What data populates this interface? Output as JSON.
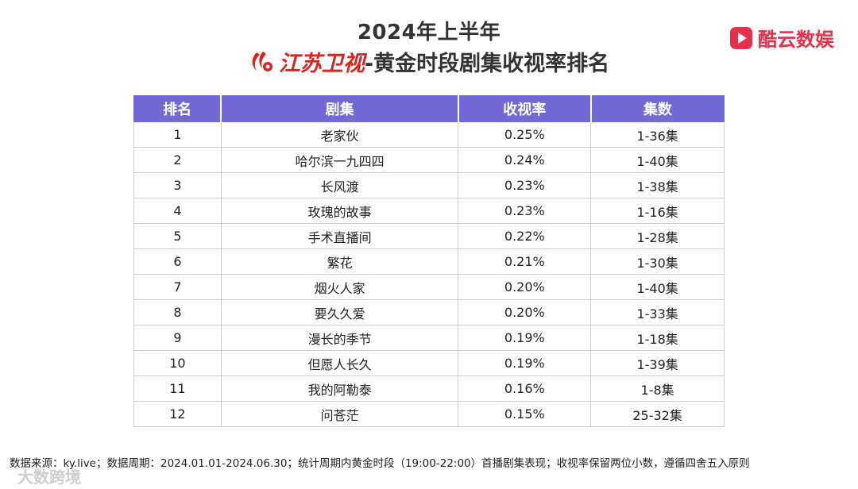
{
  "header": {
    "title_line1": "2024年上半年",
    "channel_name": "江苏卫视",
    "title_suffix": "-黄金时段剧集收视率排名"
  },
  "brand": {
    "name": "酷云数娱",
    "color": "#e8304a"
  },
  "table": {
    "header_color": "#7468d6",
    "columns": [
      "排名",
      "剧集",
      "收视率",
      "集数"
    ],
    "rows": [
      {
        "rank": "1",
        "title": "老家伙",
        "rating": "0.25%",
        "episodes": "1-36集"
      },
      {
        "rank": "2",
        "title": "哈尔滨一九四四",
        "rating": "0.24%",
        "episodes": "1-40集"
      },
      {
        "rank": "3",
        "title": "长风渡",
        "rating": "0.23%",
        "episodes": "1-38集"
      },
      {
        "rank": "4",
        "title": "玫瑰的故事",
        "rating": "0.23%",
        "episodes": "1-16集"
      },
      {
        "rank": "5",
        "title": "手术直播间",
        "rating": "0.22%",
        "episodes": "1-28集"
      },
      {
        "rank": "6",
        "title": "繁花",
        "rating": "0.21%",
        "episodes": "1-30集"
      },
      {
        "rank": "7",
        "title": "烟火人家",
        "rating": "0.20%",
        "episodes": "1-40集"
      },
      {
        "rank": "8",
        "title": "要久久爱",
        "rating": "0.20%",
        "episodes": "1-33集"
      },
      {
        "rank": "9",
        "title": "漫长的季节",
        "rating": "0.19%",
        "episodes": "1-18集"
      },
      {
        "rank": "10",
        "title": "但愿人长久",
        "rating": "0.19%",
        "episodes": "1-39集"
      },
      {
        "rank": "11",
        "title": "我的阿勒泰",
        "rating": "0.16%",
        "episodes": "1-8集"
      },
      {
        "rank": "12",
        "title": "问苍茫",
        "rating": "0.15%",
        "episodes": "25-32集"
      }
    ]
  },
  "footer": {
    "note": "数据来源：ky.live；数据周期：2024.01.01-2024.06.30；统计周期内黄金时段（19:00-22:00）首播剧集表现；收视率保留两位小数，遵循四舍五入原则"
  },
  "watermark": {
    "text": "大数跨境"
  }
}
